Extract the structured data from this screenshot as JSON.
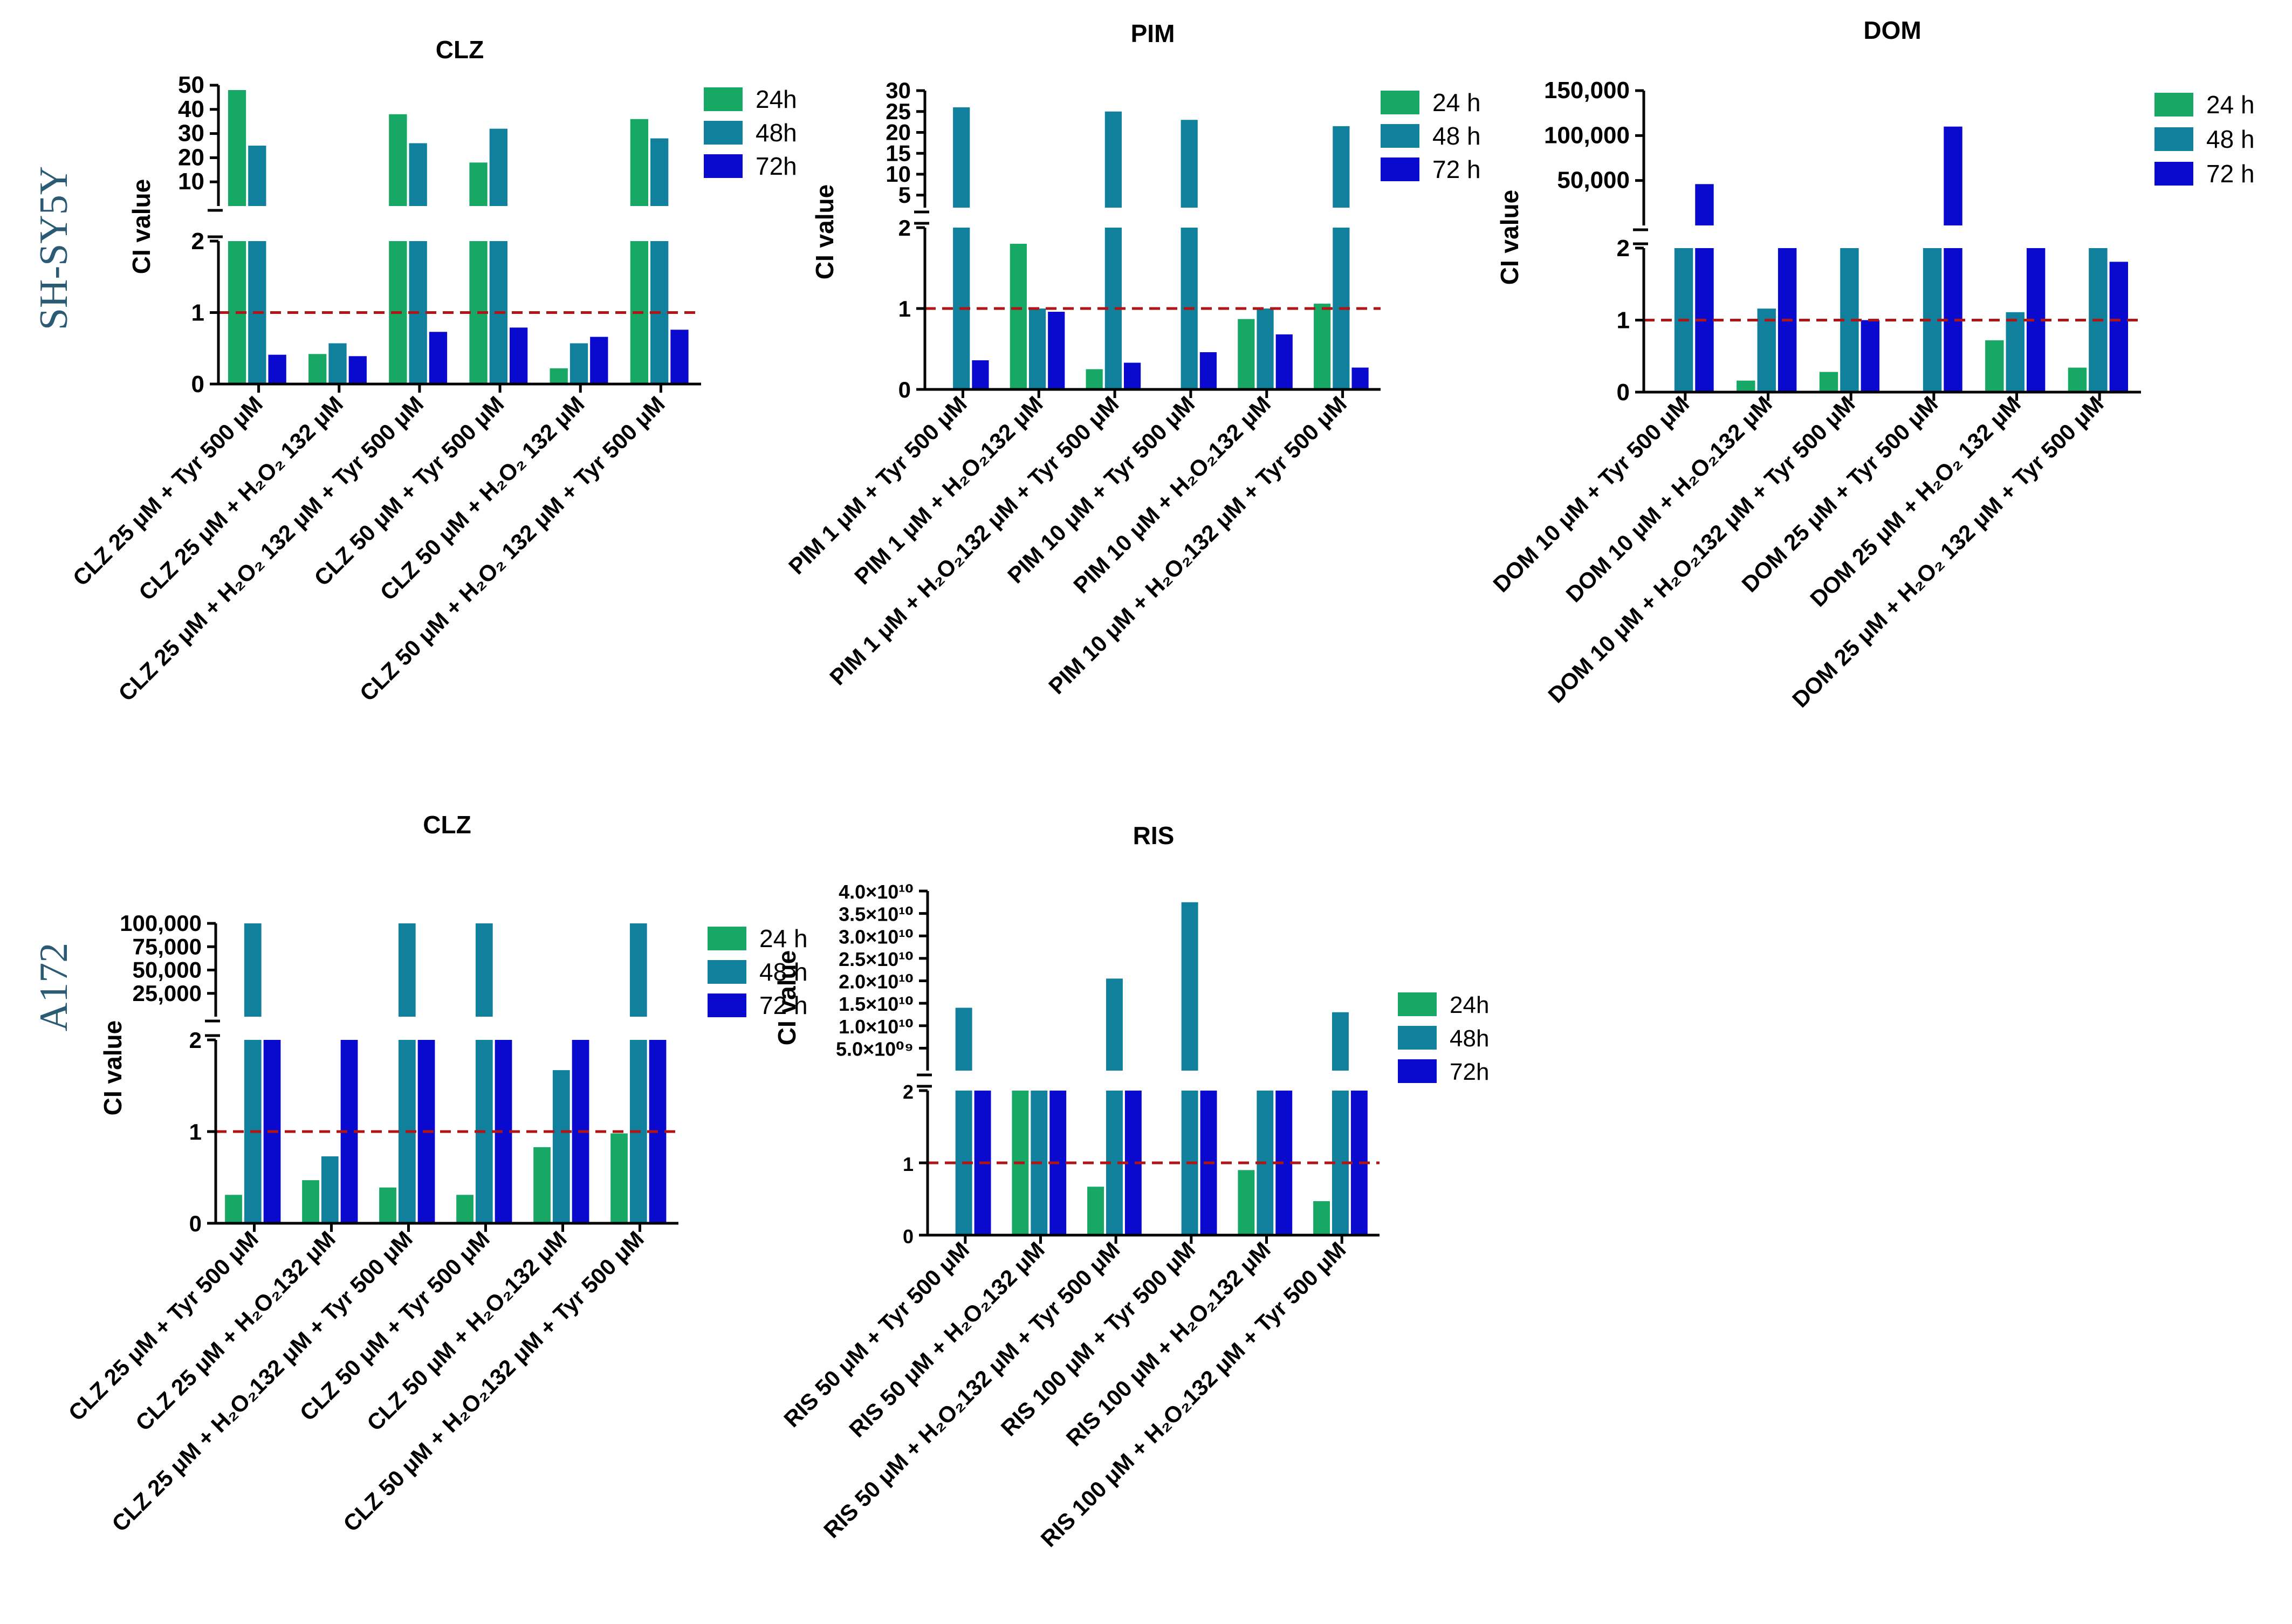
{
  "row_labels": [
    "SH-SY5Y",
    "A172"
  ],
  "colors": {
    "24h": "#17a865",
    "48h": "#11809c",
    "72h": "#0a0acf",
    "reference_line": "#b01414",
    "row_label": "#2a5a74"
  },
  "chart_data": [
    {
      "type": "bar",
      "panel": "SH-SY5Y CLZ",
      "title": "CLZ",
      "ylabel": "CI value",
      "categories": [
        "CLZ 25 μM + Tyr 500 μM",
        "CLZ 25 μM + H₂O₂ 132 μM",
        "CLZ 25 μM + H₂O₂ 132 μM + Tyr 500 μM",
        "CLZ 50 μM + Tyr 500 μM",
        "CLZ 50 μM + H₂O₂ 132 μM",
        "CLZ 50 μM + H₂O₂ 132 μM + Tyr 500 μM"
      ],
      "series": [
        {
          "name": "24h",
          "values": [
            48,
            0.42,
            38,
            18,
            0.22,
            36
          ]
        },
        {
          "name": "48h",
          "values": [
            25,
            0.57,
            26,
            32,
            0.57,
            28
          ]
        },
        {
          "name": "72h",
          "values": [
            0.41,
            0.39,
            0.73,
            0.79,
            0.66,
            0.76
          ]
        }
      ],
      "reference_line": 1,
      "y_break": {
        "lower": [
          0,
          2
        ],
        "upper": [
          0,
          50
        ]
      },
      "lower_ticks": [
        "0",
        "1",
        "2"
      ],
      "upper_ticks": [
        "10",
        "20",
        "30",
        "40",
        "50"
      ],
      "upper_tick_values": [
        10,
        20,
        30,
        40,
        50
      ],
      "legend": [
        "24h",
        "48h",
        "72h"
      ],
      "legend_position": "top-right"
    },
    {
      "type": "bar",
      "panel": "SH-SY5Y PIM",
      "title": "PIM",
      "ylabel": "CI value",
      "categories": [
        "PIM 1 μM + Tyr 500 μM",
        "PIM 1 μM + H₂O₂132 μM",
        "PIM 1 μM + H₂O₂132 μM + Tyr 500 μM",
        "PIM 10 μM + Tyr 500 μM",
        "PIM 10 μM + H₂O₂132 μM",
        "PIM 10 μM + H₂O₂132 μM + Tyr 500 μM"
      ],
      "series": [
        {
          "name": "24h",
          "values": [
            0,
            1.8,
            0.25,
            0,
            0.87,
            1.06
          ]
        },
        {
          "name": "48h",
          "values": [
            26,
            1.0,
            25,
            23,
            1.0,
            21.5
          ]
        },
        {
          "name": "72h",
          "values": [
            0.36,
            0.96,
            0.33,
            0.46,
            0.68,
            0.27
          ]
        }
      ],
      "reference_line": 1,
      "y_break": {
        "lower": [
          0,
          2
        ],
        "upper": [
          2,
          30
        ]
      },
      "lower_ticks": [
        "0",
        "1",
        "2"
      ],
      "upper_ticks": [
        "5",
        "10",
        "15",
        "20",
        "25",
        "30"
      ],
      "upper_tick_values": [
        5,
        10,
        15,
        20,
        25,
        30
      ],
      "legend": [
        "24 h",
        "48 h",
        "72 h"
      ],
      "legend_position": "top-right"
    },
    {
      "type": "bar",
      "panel": "SH-SY5Y DOM",
      "title": "DOM",
      "ylabel": "CI value",
      "categories": [
        "DOM 10 μM + Tyr 500 μM",
        "DOM 10 μM + H₂O₂132 μM",
        "DOM 10 μM + H₂O₂132 μM + Tyr 500 μM",
        "DOM 25 μM + Tyr 500 μM",
        "DOM 25 μM + H₂O₂ 132 μM",
        "DOM 25 μM + H₂O₂ 132 μM + Tyr 500 μM"
      ],
      "series": [
        {
          "name": "24h",
          "values": [
            0,
            0.16,
            0.28,
            0,
            0.72,
            0.34
          ]
        },
        {
          "name": "48h",
          "values": [
            2,
            1.16,
            2,
            2,
            1.11,
            2
          ]
        },
        {
          "name": "72h",
          "values": [
            46000,
            2,
            1.0,
            110000,
            2,
            1.81
          ]
        }
      ],
      "reference_line": 1,
      "y_break": {
        "lower": [
          0,
          2
        ],
        "upper": [
          2,
          150000
        ]
      },
      "lower_ticks": [
        "0",
        "1",
        "2"
      ],
      "upper_ticks": [
        "50,000",
        "100,000",
        "150,000"
      ],
      "upper_tick_values": [
        50000,
        100000,
        150000
      ],
      "legend": [
        "24 h",
        "48 h",
        "72 h"
      ],
      "legend_position": "top-right"
    },
    {
      "type": "bar",
      "panel": "A172 CLZ",
      "title": "CLZ",
      "ylabel": "CI value",
      "categories": [
        "CLZ 25 μM + Tyr 500 μM",
        "CLZ 25 μM + H₂O₂132 μM",
        "CLZ 25 μM + H₂O₂132 μM + Tyr 500 μM",
        "CLZ 50 μM + Tyr 500 μM",
        "CLZ 50 μM + H₂O₂132 μM",
        "CLZ 50 μM + H₂O₂132 μM + Tyr 500 μM"
      ],
      "series": [
        {
          "name": "24h",
          "values": [
            0.31,
            0.47,
            0.39,
            0.31,
            0.83,
            0.98
          ]
        },
        {
          "name": "48h",
          "values": [
            100000,
            0.73,
            100000,
            100000,
            1.67,
            100000
          ]
        },
        {
          "name": "72h",
          "values": [
            2,
            2,
            2,
            2,
            2,
            2
          ]
        }
      ],
      "reference_line": 1,
      "y_break": {
        "lower": [
          0,
          2
        ],
        "upper": [
          2,
          100000
        ]
      },
      "lower_ticks": [
        "0",
        "1",
        "2"
      ],
      "upper_ticks": [
        "25,000",
        "50,000",
        "75,000",
        "100,000"
      ],
      "upper_tick_values": [
        25000,
        50000,
        75000,
        100000
      ],
      "legend": [
        "24 h",
        "48 h",
        "72 h"
      ],
      "legend_position": "top-right"
    },
    {
      "type": "bar",
      "panel": "A172 RIS",
      "title": "RIS",
      "ylabel": "CI value",
      "categories": [
        "RIS 50 μM + Tyr 500 μM",
        "RIS 50 μM + H₂O₂132 μM",
        "RIS 50 μM + H₂O₂132 μM + Tyr 500 μM",
        "RIS 100 μM + Tyr 500 μM",
        "RIS 100 μM + H₂O₂132 μM",
        "RIS 100 μM + H₂O₂132 μM + Tyr 500 μM"
      ],
      "series": [
        {
          "name": "24h",
          "values": [
            0,
            2,
            0.67,
            0,
            0.9,
            0.47
          ]
        },
        {
          "name": "48h",
          "values": [
            14000000000,
            2,
            20500000000,
            37500000000,
            2,
            13000000000
          ]
        },
        {
          "name": "72h",
          "values": [
            2,
            2,
            2,
            2,
            2,
            2
          ]
        }
      ],
      "reference_line": 1,
      "y_break": {
        "lower": [
          0,
          2
        ],
        "upper": [
          2,
          40000000000
        ]
      },
      "lower_ticks": [
        "0",
        "1",
        "2"
      ],
      "upper_ticks": [
        "5.0×10⁰⁹",
        "1.0×10¹⁰",
        "1.5×10¹⁰",
        "2.0×10¹⁰",
        "2.5×10¹⁰",
        "3.0×10¹⁰",
        "3.5×10¹⁰",
        "4.0×10¹⁰"
      ],
      "upper_tick_values": [
        5000000000,
        10000000000,
        15000000000,
        20000000000,
        25000000000,
        30000000000,
        35000000000,
        40000000000
      ],
      "legend": [
        "24h",
        "48h",
        "72h"
      ],
      "legend_position": "right"
    }
  ]
}
